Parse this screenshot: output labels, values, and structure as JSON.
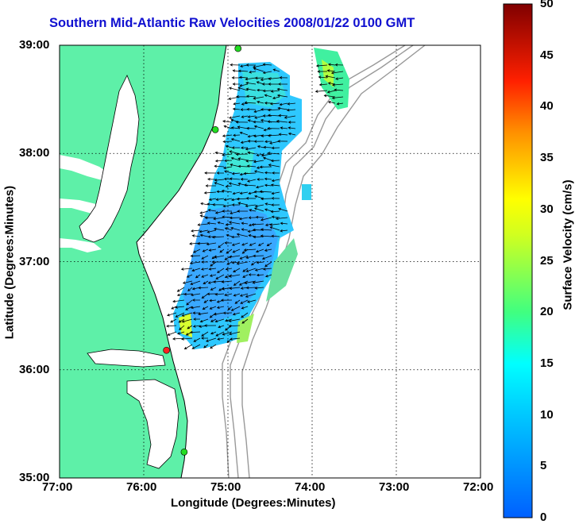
{
  "title": "Southern Mid-Atlantic Raw Velocities 2008/01/22 0100 GMT",
  "xlabel": "Longitude (Degrees:Minutes)",
  "ylabel": "Latitude (Degrees:Minutes)",
  "colorbar": {
    "label": "Surface Velocity (cm/s)",
    "min": 0,
    "max": 50,
    "ticks": [
      "0",
      "5",
      "10",
      "15",
      "20",
      "25",
      "30",
      "35",
      "40",
      "45",
      "50"
    ],
    "colors": {
      "low": "#0060ff",
      "mid_low": "#00ffff",
      "mid": "#40ff80",
      "mid_high": "#ffff00",
      "high": "#ff0000",
      "top": "#800000"
    }
  },
  "chart_data": {
    "type": "map",
    "title": "Southern Mid-Atlantic Raw Velocities 2008/01/22 0100 GMT",
    "x_ticks": [
      "77:00",
      "76:00",
      "75:00",
      "74:00",
      "73:00",
      "72:00"
    ],
    "y_ticks": [
      "35:00",
      "36:00",
      "37:00",
      "38:00",
      "39:00"
    ],
    "xlim": [
      -77,
      -72
    ],
    "ylim": [
      35,
      39
    ],
    "grid": true,
    "land_color": "#5ef0a8",
    "coastline_color": "#000000",
    "bathymetry_color": "#999999",
    "stations": [
      {
        "lon": -74.88,
        "lat": 38.97,
        "color": "#22dd22"
      },
      {
        "lon": -75.15,
        "lat": 38.22,
        "color": "#22dd22"
      },
      {
        "lon": -75.73,
        "lat": 36.18,
        "color": "#ff2020"
      },
      {
        "lon": -75.52,
        "lat": 35.24,
        "color": "#22dd22"
      }
    ]
  }
}
